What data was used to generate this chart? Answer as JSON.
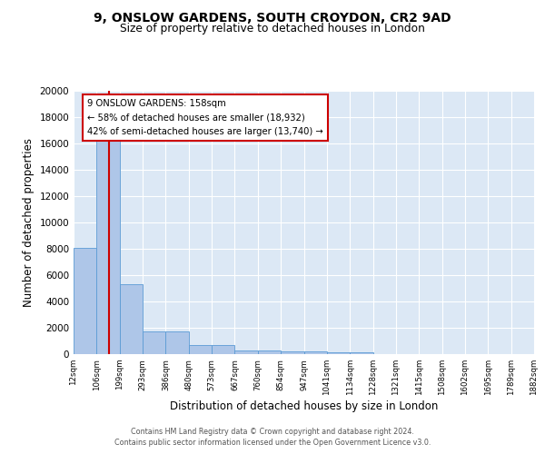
{
  "title1": "9, ONSLOW GARDENS, SOUTH CROYDON, CR2 9AD",
  "title2": "Size of property relative to detached houses in London",
  "xlabel": "Distribution of detached houses by size in London",
  "ylabel": "Number of detached properties",
  "bar_values": [
    8100,
    16500,
    5300,
    1750,
    1750,
    700,
    700,
    300,
    250,
    200,
    175,
    150,
    150,
    0,
    0,
    0,
    0,
    0,
    0,
    0
  ],
  "categories": [
    "12sqm",
    "106sqm",
    "199sqm",
    "293sqm",
    "386sqm",
    "480sqm",
    "573sqm",
    "667sqm",
    "760sqm",
    "854sqm",
    "947sqm",
    "1041sqm",
    "1134sqm",
    "1228sqm",
    "1321sqm",
    "1415sqm",
    "1508sqm",
    "1602sqm",
    "1695sqm",
    "1789sqm",
    "1882sqm"
  ],
  "bar_color": "#aec6e8",
  "bar_edge_color": "#5b9bd5",
  "background_color": "#dce8f5",
  "grid_color": "#ffffff",
  "vline_x": 1.55,
  "vline_color": "#cc0000",
  "annotation_text": "9 ONSLOW GARDENS: 158sqm\n← 58% of detached houses are smaller (18,932)\n42% of semi-detached houses are larger (13,740) →",
  "annotation_box_color": "#ffffff",
  "annotation_box_edge": "#cc0000",
  "ylim": [
    0,
    20000
  ],
  "yticks": [
    0,
    2000,
    4000,
    6000,
    8000,
    10000,
    12000,
    14000,
    16000,
    18000,
    20000
  ],
  "footer1": "Contains HM Land Registry data © Crown copyright and database right 2024.",
  "footer2": "Contains public sector information licensed under the Open Government Licence v3.0."
}
